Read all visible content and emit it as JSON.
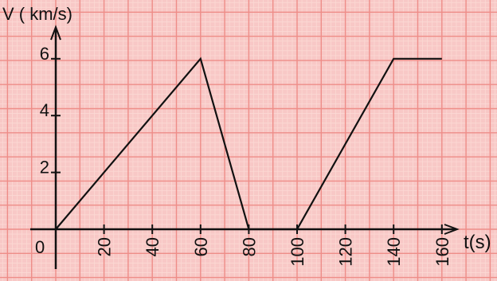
{
  "chart_data": {
    "type": "line",
    "title": "",
    "ylabel": "V ( km/s)",
    "xlabel": "t(s)",
    "origin_label": "0",
    "xlim": [
      0,
      160
    ],
    "ylim": [
      0,
      6
    ],
    "x_ticks": [
      20,
      40,
      60,
      80,
      100,
      120,
      140,
      "160"
    ],
    "x_tick_labels": [
      "20",
      "40",
      "60",
      "80",
      "100",
      "120",
      "140",
      "160"
    ],
    "y_ticks": [
      2,
      4,
      6
    ],
    "y_tick_labels": [
      "2",
      "4",
      "6"
    ],
    "grid": true,
    "legend": "none",
    "series": [
      {
        "x": [
          0,
          60,
          80,
          100,
          140,
          160
        ],
        "y": [
          0,
          6,
          0,
          0,
          6,
          6
        ]
      }
    ]
  },
  "colors": {
    "background": "#f8c8c6",
    "grid_minor": "#fbd9d4",
    "grid_major": "#ee8d88",
    "line": "#111111",
    "axis": "#111111"
  }
}
